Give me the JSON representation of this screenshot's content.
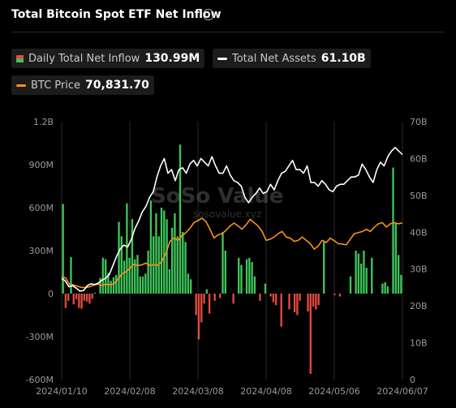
{
  "header": {
    "title": "Total Bitcoin Spot ETF Net Inflow",
    "info_icon": "info-icon"
  },
  "legend": {
    "inflow_label": "Daily Total Net Inflow",
    "inflow_value": "130.99M",
    "assets_label": "Total Net Assets",
    "assets_value": "61.10B",
    "price_label": "BTC Price",
    "price_value": "70,831.70"
  },
  "watermark": {
    "brand": "SoSo Value",
    "site": "sosovalue.xyz"
  },
  "colors": {
    "inflow_positive": "#3ec45a",
    "inflow_negative": "#e04b3c",
    "net_assets_line": "#ffffff",
    "btc_price_line": "#f7931a",
    "grid": "#2a2a2a"
  },
  "chart_data": {
    "type": "bar",
    "title": "Total Bitcoin Spot ETF Net Inflow",
    "x_tick_labels": [
      "2024/01/10",
      "2024/02/08",
      "2024/03/08",
      "2024/04/08",
      "2024/05/06",
      "2024/06/07"
    ],
    "left_axis": {
      "ticks": [
        "1.2B",
        "900M",
        "600M",
        "300M",
        "0",
        "-300M",
        "-600M"
      ],
      "range_millions": [
        -600,
        1200
      ]
    },
    "right_axis": {
      "ticks": [
        "70B",
        "60B",
        "50B",
        "40B",
        "30B",
        "20B",
        "10B",
        "0"
      ],
      "range_billions": [
        0,
        70
      ]
    },
    "grid": "vertical",
    "legend_placement": "top",
    "series": [
      {
        "name": "Daily Total Net Inflow",
        "unit": "millions USD",
        "axis": "left",
        "kind": "bar",
        "values": [
          625,
          -100,
          -50,
          255,
          -75,
          -40,
          -100,
          -105,
          -50,
          -55,
          -70,
          -35,
          5,
          0,
          110,
          250,
          240,
          145,
          90,
          115,
          130,
          500,
          400,
          230,
          630,
          250,
          520,
          240,
          270,
          120,
          120,
          140,
          300,
          650,
          400,
          560,
          400,
          600,
          580,
          520,
          170,
          460,
          560,
          400,
          1040,
          430,
          360,
          140,
          100,
          0,
          -150,
          -320,
          -200,
          -70,
          30,
          -140,
          0,
          -50,
          0,
          -30,
          430,
          300,
          0,
          0,
          -70,
          0,
          250,
          200,
          0,
          240,
          250,
          220,
          120,
          0,
          -50,
          0,
          70,
          0,
          -20,
          -60,
          -80,
          0,
          -230,
          0,
          0,
          -110,
          0,
          -130,
          -150,
          -50,
          0,
          0,
          -125,
          -560,
          -90,
          -110,
          -80,
          0,
          360,
          0,
          0,
          0,
          -10,
          0,
          -20,
          0,
          0,
          0,
          120,
          0,
          300,
          280,
          210,
          300,
          180,
          0,
          250,
          0,
          0,
          0,
          70,
          80,
          50,
          0,
          880,
          490,
          270,
          130.99
        ]
      },
      {
        "name": "Total Net Assets",
        "unit": "billions USD",
        "axis": "right",
        "kind": "line",
        "values": [
          27.5,
          26.8,
          25.2,
          25.5,
          24.8,
          24.0,
          24.2,
          25.5,
          26.0,
          25.8,
          26.2,
          27.0,
          27.5,
          28.5,
          31.0,
          33.5,
          35.5,
          36.5,
          36.0,
          38.0,
          41.0,
          43.0,
          45.5,
          47.0,
          49.5,
          51.0,
          55.0,
          58.0,
          60.0,
          56.0,
          57.0,
          54.0,
          57.0,
          57.5,
          56.0,
          58.5,
          59.5,
          58.0,
          60.0,
          59.0,
          58.0,
          60.5,
          58.0,
          56.0,
          56.0,
          58.0,
          55.5,
          54.0,
          53.5,
          52.5,
          49.5,
          48.0,
          49.5,
          50.5,
          52.0,
          50.5,
          51.0,
          53.0,
          51.5,
          54.0,
          56.0,
          56.5,
          58.0,
          59.5,
          57.0,
          57.0,
          56.0,
          58.0,
          53.5,
          53.5,
          52.5,
          54.0,
          53.0,
          51.5,
          51.0,
          52.5,
          53.0,
          53.0,
          54.0,
          55.0,
          55.0,
          55.5,
          58.5,
          57.0,
          55.0,
          53.5,
          57.0,
          59.0,
          58.0,
          60.5,
          62.0,
          63.0,
          62.0,
          61.1
        ]
      },
      {
        "name": "BTC Price",
        "unit": "USD",
        "axis": "right",
        "kind": "line",
        "values": [
          46600,
          46000,
          43000,
          42800,
          42200,
          41700,
          41600,
          42000,
          42700,
          43200,
          42600,
          43100,
          43000,
          43200,
          45300,
          47800,
          48700,
          50300,
          52200,
          51600,
          51900,
          52700,
          51600,
          52000,
          51700,
          53500,
          57000,
          62500,
          64000,
          63000,
          65000,
          66500,
          68500,
          71000,
          72000,
          73000,
          71500,
          68000,
          64000,
          65500,
          66000,
          67500,
          69500,
          70800,
          69500,
          68000,
          70000,
          72500,
          71000,
          69500,
          67000,
          63000,
          63500,
          64500,
          66000,
          67000,
          64500,
          64000,
          62500,
          63000,
          64500,
          63000,
          61500,
          59000,
          60500,
          63000,
          62000,
          64000,
          62800,
          61500,
          61300,
          61000,
          63500,
          66000,
          66500,
          67000,
          68000,
          67000,
          69000,
          70500,
          71000,
          69000,
          70500,
          71000,
          70500,
          70800
        ]
      }
    ]
  }
}
